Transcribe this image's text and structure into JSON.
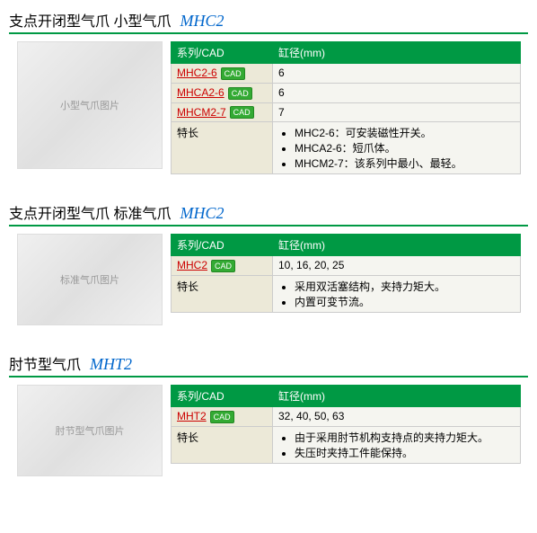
{
  "colors": {
    "accent_green": "#009944",
    "link_red": "#cc0000",
    "title_blue": "#0066cc",
    "cell_bg": "#f5f5f0",
    "label_bg": "#ece9d8"
  },
  "sections": [
    {
      "title_main": "支点开闭型气爪 小型气爪",
      "title_code": "MHC2",
      "img_alt": "小型气爪图片",
      "img_height": "large",
      "headers": {
        "col1": "系列/CAD",
        "col2": "缸径(mm)"
      },
      "rows": [
        {
          "series": "MHC2-6",
          "cad": "CAD",
          "bore": "6"
        },
        {
          "series": "MHCA2-6",
          "cad": "CAD",
          "bore": "6"
        },
        {
          "series": "MHCM2-7",
          "cad": "CAD",
          "bore": "7"
        }
      ],
      "feature_label": "特长",
      "features": [
        "MHC2-6：可安装磁性开关。",
        "MHCA2-6：短爪体。",
        "MHCM2-7：该系列中最小、最轻。"
      ]
    },
    {
      "title_main": "支点开闭型气爪 标准气爪",
      "title_code": "MHC2",
      "img_alt": "标准气爪图片",
      "img_height": "small",
      "headers": {
        "col1": "系列/CAD",
        "col2": "缸径(mm)"
      },
      "rows": [
        {
          "series": "MHC2",
          "cad": "CAD",
          "bore": "10, 16, 20, 25"
        }
      ],
      "feature_label": "特长",
      "features": [
        "采用双活塞结构，夹持力矩大。",
        "内置可变节流。"
      ]
    },
    {
      "title_main": "肘节型气爪",
      "title_code": "MHT2",
      "img_alt": "肘节型气爪图片",
      "img_height": "small",
      "headers": {
        "col1": "系列/CAD",
        "col2": "缸径(mm)"
      },
      "rows": [
        {
          "series": "MHT2",
          "cad": "CAD",
          "bore": "32, 40, 50, 63"
        }
      ],
      "feature_label": "特长",
      "features": [
        "由于采用肘节机构支持点的夹持力矩大。",
        "失压时夹持工件能保持。"
      ]
    }
  ]
}
